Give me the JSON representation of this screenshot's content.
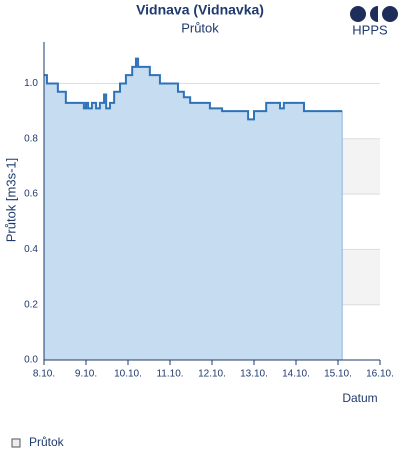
{
  "chart_data": {
    "type": "line",
    "title": "Vidnava (Vidnavka)",
    "subtitle": "Průtok",
    "logo": "HPPS",
    "x_label": "Datum",
    "y_label": "Průtok [m3s-1]",
    "x": [
      8.0,
      8.07,
      8.33,
      8.52,
      8.95,
      9.0,
      9.05,
      9.14,
      9.24,
      9.33,
      9.43,
      9.48,
      9.57,
      9.67,
      9.81,
      9.95,
      10.1,
      10.19,
      10.24,
      10.52,
      10.76,
      11.19,
      11.33,
      11.48,
      11.95,
      12.24,
      12.86,
      13.0,
      13.29,
      13.62,
      13.71,
      14.19,
      15.1
    ],
    "series": [
      {
        "name": "Průtok",
        "color": "#2f72b8",
        "fill": "#c6ddf1",
        "values": [
          1.03,
          1.0,
          0.97,
          0.93,
          0.91,
          0.93,
          0.91,
          0.93,
          0.91,
          0.93,
          0.96,
          0.91,
          0.93,
          0.97,
          1.0,
          1.03,
          1.06,
          1.09,
          1.06,
          1.03,
          1.0,
          0.97,
          0.95,
          0.93,
          0.91,
          0.9,
          0.87,
          0.9,
          0.93,
          0.91,
          0.93,
          0.9,
          0.9
        ]
      }
    ],
    "xlim": [
      8,
      16
    ],
    "xticks": [
      {
        "value": 8,
        "label": "8.10."
      },
      {
        "value": 9,
        "label": "9.10."
      },
      {
        "value": 10,
        "label": "10.10."
      },
      {
        "value": 11,
        "label": "11.10."
      },
      {
        "value": 12,
        "label": "12.10."
      },
      {
        "value": 13,
        "label": "13.10."
      },
      {
        "value": 14,
        "label": "14.10."
      },
      {
        "value": 15,
        "label": "15.10."
      },
      {
        "value": 16,
        "label": "16.10."
      }
    ],
    "ylim": [
      0,
      1.15
    ],
    "yticks": [
      {
        "value": 0,
        "label": "0.0"
      },
      0.2,
      0.4,
      0.6,
      0.8,
      {
        "value": 1,
        "label": "1.0"
      }
    ],
    "grid": true
  }
}
